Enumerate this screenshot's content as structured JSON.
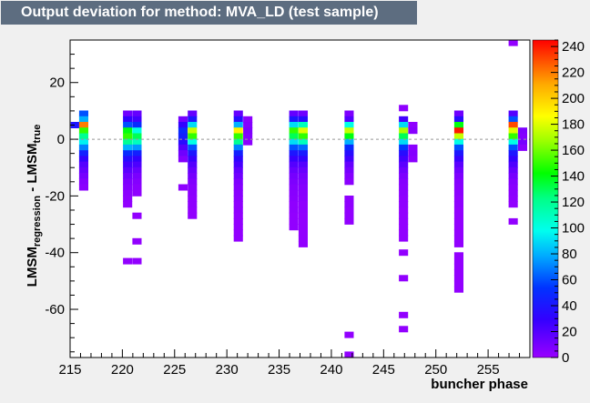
{
  "header": {
    "title": "Output deviation for method: MVA_LD (test sample)"
  },
  "chart_data": {
    "type": "heatmap",
    "title": "Output deviation for method: MVA_LD (test sample)",
    "xlabel": "buncher phase",
    "ylabel_main": "LMSM",
    "ylabel_sub1": "regression",
    "ylabel_mid": " - LMSM",
    "ylabel_sub2": "true",
    "xlim": [
      215,
      259
    ],
    "ylim": [
      -77,
      35
    ],
    "x_ticks": [
      215,
      220,
      225,
      230,
      235,
      240,
      245,
      250,
      255
    ],
    "y_ticks": [
      -60,
      -40,
      -20,
      0,
      20
    ],
    "z_ticks": [
      0,
      20,
      40,
      60,
      80,
      100,
      120,
      140,
      160,
      180,
      200,
      220,
      240
    ],
    "zlim": [
      0,
      245
    ],
    "bin_width_x": 0.88,
    "bin_height_y": 2.24,
    "reference_line_y": 0,
    "cells": [
      {
        "x": 215.5,
        "y": 5,
        "z": 40
      },
      {
        "x": 216.3,
        "y": 9,
        "z": 60
      },
      {
        "x": 216.3,
        "y": 7,
        "z": 80
      },
      {
        "x": 216.3,
        "y": 5,
        "z": 220
      },
      {
        "x": 216.3,
        "y": 3,
        "z": 150
      },
      {
        "x": 216.3,
        "y": 1,
        "z": 120
      },
      {
        "x": 216.3,
        "y": -1,
        "z": 95
      },
      {
        "x": 216.3,
        "y": -3,
        "z": 70
      },
      {
        "x": 216.3,
        "y": -5,
        "z": 45
      },
      {
        "x": 216.3,
        "y": -7,
        "z": 30
      },
      {
        "x": 216.3,
        "y": -9,
        "z": 20
      },
      {
        "x": 216.3,
        "y": -11,
        "z": 15
      },
      {
        "x": 216.3,
        "y": -13,
        "z": 10
      },
      {
        "x": 216.3,
        "y": -15,
        "z": 6
      },
      {
        "x": 216.3,
        "y": -17,
        "z": 4
      },
      {
        "x": 220.5,
        "y": 9,
        "z": 12
      },
      {
        "x": 220.5,
        "y": 7,
        "z": 30
      },
      {
        "x": 220.5,
        "y": 5,
        "z": 60
      },
      {
        "x": 220.5,
        "y": 3,
        "z": 140
      },
      {
        "x": 220.5,
        "y": 1,
        "z": 150
      },
      {
        "x": 220.5,
        "y": -1,
        "z": 120
      },
      {
        "x": 220.5,
        "y": -3,
        "z": 80
      },
      {
        "x": 220.5,
        "y": -5,
        "z": 50
      },
      {
        "x": 220.5,
        "y": -7,
        "z": 35
      },
      {
        "x": 220.5,
        "y": -9,
        "z": 25
      },
      {
        "x": 220.5,
        "y": -11,
        "z": 18
      },
      {
        "x": 220.5,
        "y": -13,
        "z": 12
      },
      {
        "x": 220.5,
        "y": -15,
        "z": 8
      },
      {
        "x": 220.5,
        "y": -17,
        "z": 6
      },
      {
        "x": 220.5,
        "y": -19,
        "z": 4
      },
      {
        "x": 220.5,
        "y": -21,
        "z": 3
      },
      {
        "x": 220.5,
        "y": -23,
        "z": 2
      },
      {
        "x": 220.5,
        "y": -43,
        "z": 2
      },
      {
        "x": 221.4,
        "y": 9,
        "z": 15
      },
      {
        "x": 221.4,
        "y": 7,
        "z": 25
      },
      {
        "x": 221.4,
        "y": 5,
        "z": 50
      },
      {
        "x": 221.4,
        "y": 3,
        "z": 100
      },
      {
        "x": 221.4,
        "y": 1,
        "z": 130
      },
      {
        "x": 221.4,
        "y": -1,
        "z": 110
      },
      {
        "x": 221.4,
        "y": -3,
        "z": 75
      },
      {
        "x": 221.4,
        "y": -5,
        "z": 45
      },
      {
        "x": 221.4,
        "y": -7,
        "z": 30
      },
      {
        "x": 221.4,
        "y": -9,
        "z": 22
      },
      {
        "x": 221.4,
        "y": -11,
        "z": 14
      },
      {
        "x": 221.4,
        "y": -13,
        "z": 9
      },
      {
        "x": 221.4,
        "y": -15,
        "z": 6
      },
      {
        "x": 221.4,
        "y": -17,
        "z": 4
      },
      {
        "x": 221.4,
        "y": -19,
        "z": 3
      },
      {
        "x": 221.4,
        "y": -27,
        "z": 2
      },
      {
        "x": 221.4,
        "y": -36,
        "z": 2
      },
      {
        "x": 221.4,
        "y": -43,
        "z": 2
      },
      {
        "x": 225.8,
        "y": 7,
        "z": 10
      },
      {
        "x": 225.8,
        "y": 5,
        "z": 30
      },
      {
        "x": 225.8,
        "y": 3,
        "z": 50
      },
      {
        "x": 225.8,
        "y": 1,
        "z": 45
      },
      {
        "x": 225.8,
        "y": -1,
        "z": 35
      },
      {
        "x": 225.8,
        "y": -3,
        "z": 20
      },
      {
        "x": 225.8,
        "y": -5,
        "z": 12
      },
      {
        "x": 225.8,
        "y": -7,
        "z": 6
      },
      {
        "x": 225.8,
        "y": -17,
        "z": 3
      },
      {
        "x": 226.7,
        "y": 9,
        "z": 15
      },
      {
        "x": 226.7,
        "y": 7,
        "z": 40
      },
      {
        "x": 226.7,
        "y": 5,
        "z": 90
      },
      {
        "x": 226.7,
        "y": 3,
        "z": 175
      },
      {
        "x": 226.7,
        "y": 1,
        "z": 150
      },
      {
        "x": 226.7,
        "y": -1,
        "z": 100
      },
      {
        "x": 226.7,
        "y": -3,
        "z": 60
      },
      {
        "x": 226.7,
        "y": -5,
        "z": 40
      },
      {
        "x": 226.7,
        "y": -7,
        "z": 28
      },
      {
        "x": 226.7,
        "y": -9,
        "z": 20
      },
      {
        "x": 226.7,
        "y": -11,
        "z": 14
      },
      {
        "x": 226.7,
        "y": -13,
        "z": 10
      },
      {
        "x": 226.7,
        "y": -15,
        "z": 7
      },
      {
        "x": 226.7,
        "y": -17,
        "z": 5
      },
      {
        "x": 226.7,
        "y": -19,
        "z": 4
      },
      {
        "x": 226.7,
        "y": -21,
        "z": 3
      },
      {
        "x": 226.7,
        "y": -23,
        "z": 3
      },
      {
        "x": 226.7,
        "y": -25,
        "z": 2
      },
      {
        "x": 226.7,
        "y": -27,
        "z": 2
      },
      {
        "x": 231.1,
        "y": 9,
        "z": 15
      },
      {
        "x": 231.1,
        "y": 7,
        "z": 35
      },
      {
        "x": 231.1,
        "y": 5,
        "z": 80
      },
      {
        "x": 231.1,
        "y": 3,
        "z": 190
      },
      {
        "x": 231.1,
        "y": 1,
        "z": 150
      },
      {
        "x": 231.1,
        "y": -1,
        "z": 120
      },
      {
        "x": 231.1,
        "y": -3,
        "z": 70
      },
      {
        "x": 231.1,
        "y": -5,
        "z": 45
      },
      {
        "x": 231.1,
        "y": -7,
        "z": 32
      },
      {
        "x": 231.1,
        "y": -9,
        "z": 24
      },
      {
        "x": 231.1,
        "y": -11,
        "z": 16
      },
      {
        "x": 231.1,
        "y": -13,
        "z": 12
      },
      {
        "x": 231.1,
        "y": -15,
        "z": 8
      },
      {
        "x": 231.1,
        "y": -17,
        "z": 6
      },
      {
        "x": 231.1,
        "y": -19,
        "z": 5
      },
      {
        "x": 231.1,
        "y": -21,
        "z": 4
      },
      {
        "x": 231.1,
        "y": -23,
        "z": 3
      },
      {
        "x": 231.1,
        "y": -25,
        "z": 3
      },
      {
        "x": 231.1,
        "y": -27,
        "z": 2
      },
      {
        "x": 231.1,
        "y": -29,
        "z": 2
      },
      {
        "x": 231.1,
        "y": -31,
        "z": 2
      },
      {
        "x": 231.1,
        "y": -33,
        "z": 2
      },
      {
        "x": 231.1,
        "y": -35,
        "z": 2
      },
      {
        "x": 232.0,
        "y": 7,
        "z": 4
      },
      {
        "x": 232.0,
        "y": 5,
        "z": 6
      },
      {
        "x": 232.0,
        "y": 3,
        "z": 8
      },
      {
        "x": 232.0,
        "y": 1,
        "z": 6
      },
      {
        "x": 232.0,
        "y": -1,
        "z": 4
      },
      {
        "x": 236.4,
        "y": 9,
        "z": 15
      },
      {
        "x": 236.4,
        "y": 7,
        "z": 40
      },
      {
        "x": 236.4,
        "y": 5,
        "z": 90
      },
      {
        "x": 236.4,
        "y": 3,
        "z": 150
      },
      {
        "x": 236.4,
        "y": 1,
        "z": 130
      },
      {
        "x": 236.4,
        "y": -1,
        "z": 90
      },
      {
        "x": 236.4,
        "y": -3,
        "z": 60
      },
      {
        "x": 236.4,
        "y": -5,
        "z": 40
      },
      {
        "x": 236.4,
        "y": -7,
        "z": 28
      },
      {
        "x": 236.4,
        "y": -9,
        "z": 20
      },
      {
        "x": 236.4,
        "y": -11,
        "z": 14
      },
      {
        "x": 236.4,
        "y": -13,
        "z": 10
      },
      {
        "x": 236.4,
        "y": -15,
        "z": 8
      },
      {
        "x": 236.4,
        "y": -17,
        "z": 6
      },
      {
        "x": 236.4,
        "y": -19,
        "z": 5
      },
      {
        "x": 236.4,
        "y": -21,
        "z": 4
      },
      {
        "x": 236.4,
        "y": -23,
        "z": 3
      },
      {
        "x": 236.4,
        "y": -25,
        "z": 3
      },
      {
        "x": 236.4,
        "y": -27,
        "z": 2
      },
      {
        "x": 236.4,
        "y": -29,
        "z": 2
      },
      {
        "x": 236.4,
        "y": -31,
        "z": 2
      },
      {
        "x": 237.3,
        "y": 9,
        "z": 12
      },
      {
        "x": 237.3,
        "y": 7,
        "z": 35
      },
      {
        "x": 237.3,
        "y": 5,
        "z": 110
      },
      {
        "x": 237.3,
        "y": 3,
        "z": 180
      },
      {
        "x": 237.3,
        "y": 1,
        "z": 150
      },
      {
        "x": 237.3,
        "y": -1,
        "z": 110
      },
      {
        "x": 237.3,
        "y": -3,
        "z": 65
      },
      {
        "x": 237.3,
        "y": -5,
        "z": 42
      },
      {
        "x": 237.3,
        "y": -7,
        "z": 30
      },
      {
        "x": 237.3,
        "y": -9,
        "z": 20
      },
      {
        "x": 237.3,
        "y": -11,
        "z": 14
      },
      {
        "x": 237.3,
        "y": -13,
        "z": 10
      },
      {
        "x": 237.3,
        "y": -15,
        "z": 8
      },
      {
        "x": 237.3,
        "y": -17,
        "z": 6
      },
      {
        "x": 237.3,
        "y": -19,
        "z": 5
      },
      {
        "x": 237.3,
        "y": -21,
        "z": 4
      },
      {
        "x": 237.3,
        "y": -23,
        "z": 3
      },
      {
        "x": 237.3,
        "y": -25,
        "z": 3
      },
      {
        "x": 237.3,
        "y": -27,
        "z": 2
      },
      {
        "x": 237.3,
        "y": -29,
        "z": 2
      },
      {
        "x": 237.3,
        "y": -31,
        "z": 2
      },
      {
        "x": 237.3,
        "y": -33,
        "z": 2
      },
      {
        "x": 237.3,
        "y": -35,
        "z": 2
      },
      {
        "x": 237.3,
        "y": -37,
        "z": 2
      },
      {
        "x": 241.7,
        "y": 9,
        "z": 8
      },
      {
        "x": 241.7,
        "y": 7,
        "z": 20
      },
      {
        "x": 241.7,
        "y": 5,
        "z": 100
      },
      {
        "x": 241.7,
        "y": 3,
        "z": 175
      },
      {
        "x": 241.7,
        "y": 1,
        "z": 140
      },
      {
        "x": 241.7,
        "y": -1,
        "z": 80
      },
      {
        "x": 241.7,
        "y": -3,
        "z": 50
      },
      {
        "x": 241.7,
        "y": -5,
        "z": 35
      },
      {
        "x": 241.7,
        "y": -7,
        "z": 25
      },
      {
        "x": 241.7,
        "y": -9,
        "z": 15
      },
      {
        "x": 241.7,
        "y": -11,
        "z": 10
      },
      {
        "x": 241.7,
        "y": -13,
        "z": 6
      },
      {
        "x": 241.7,
        "y": -15,
        "z": 4
      },
      {
        "x": 241.7,
        "y": -21,
        "z": 3
      },
      {
        "x": 241.7,
        "y": -23,
        "z": 3
      },
      {
        "x": 241.7,
        "y": -25,
        "z": 2
      },
      {
        "x": 241.7,
        "y": -27,
        "z": 2
      },
      {
        "x": 241.7,
        "y": -29,
        "z": 2
      },
      {
        "x": 241.7,
        "y": -69,
        "z": 2
      },
      {
        "x": 241.7,
        "y": -76,
        "z": 2
      },
      {
        "x": 246.9,
        "y": 11,
        "z": 3
      },
      {
        "x": 246.9,
        "y": 7,
        "z": 25
      },
      {
        "x": 246.9,
        "y": 5,
        "z": 90
      },
      {
        "x": 246.9,
        "y": 3,
        "z": 170
      },
      {
        "x": 246.9,
        "y": 1,
        "z": 130
      },
      {
        "x": 246.9,
        "y": -1,
        "z": 90
      },
      {
        "x": 246.9,
        "y": -3,
        "z": 55
      },
      {
        "x": 246.9,
        "y": -5,
        "z": 35
      },
      {
        "x": 246.9,
        "y": -7,
        "z": 25
      },
      {
        "x": 246.9,
        "y": -9,
        "z": 18
      },
      {
        "x": 246.9,
        "y": -11,
        "z": 12
      },
      {
        "x": 246.9,
        "y": -13,
        "z": 8
      },
      {
        "x": 246.9,
        "y": -15,
        "z": 6
      },
      {
        "x": 246.9,
        "y": -17,
        "z": 5
      },
      {
        "x": 246.9,
        "y": -19,
        "z": 4
      },
      {
        "x": 246.9,
        "y": -21,
        "z": 3
      },
      {
        "x": 246.9,
        "y": -23,
        "z": 3
      },
      {
        "x": 246.9,
        "y": -25,
        "z": 2
      },
      {
        "x": 246.9,
        "y": -27,
        "z": 2
      },
      {
        "x": 246.9,
        "y": -29,
        "z": 2
      },
      {
        "x": 246.9,
        "y": -31,
        "z": 2
      },
      {
        "x": 246.9,
        "y": -33,
        "z": 2
      },
      {
        "x": 246.9,
        "y": -35,
        "z": 2
      },
      {
        "x": 246.9,
        "y": -40,
        "z": 2
      },
      {
        "x": 246.9,
        "y": -49,
        "z": 2
      },
      {
        "x": 246.9,
        "y": -62,
        "z": 2
      },
      {
        "x": 246.9,
        "y": -67,
        "z": 2
      },
      {
        "x": 247.8,
        "y": 5,
        "z": 3
      },
      {
        "x": 247.8,
        "y": 3,
        "z": 5
      },
      {
        "x": 247.8,
        "y": -3,
        "z": 4
      },
      {
        "x": 247.8,
        "y": -5,
        "z": 6
      },
      {
        "x": 247.8,
        "y": -7,
        "z": 4
      },
      {
        "x": 252.2,
        "y": 9,
        "z": 12
      },
      {
        "x": 252.2,
        "y": 7,
        "z": 35
      },
      {
        "x": 252.2,
        "y": 5,
        "z": 140
      },
      {
        "x": 252.2,
        "y": 3,
        "z": 240
      },
      {
        "x": 252.2,
        "y": 1,
        "z": 175
      },
      {
        "x": 252.2,
        "y": -1,
        "z": 100
      },
      {
        "x": 252.2,
        "y": -3,
        "z": 60
      },
      {
        "x": 252.2,
        "y": -5,
        "z": 40
      },
      {
        "x": 252.2,
        "y": -7,
        "z": 28
      },
      {
        "x": 252.2,
        "y": -9,
        "z": 18
      },
      {
        "x": 252.2,
        "y": -11,
        "z": 12
      },
      {
        "x": 252.2,
        "y": -13,
        "z": 8
      },
      {
        "x": 252.2,
        "y": -15,
        "z": 6
      },
      {
        "x": 252.2,
        "y": -17,
        "z": 5
      },
      {
        "x": 252.2,
        "y": -19,
        "z": 4
      },
      {
        "x": 252.2,
        "y": -21,
        "z": 3
      },
      {
        "x": 252.2,
        "y": -23,
        "z": 3
      },
      {
        "x": 252.2,
        "y": -25,
        "z": 2
      },
      {
        "x": 252.2,
        "y": -27,
        "z": 2
      },
      {
        "x": 252.2,
        "y": -29,
        "z": 2
      },
      {
        "x": 252.2,
        "y": -31,
        "z": 2
      },
      {
        "x": 252.2,
        "y": -33,
        "z": 2
      },
      {
        "x": 252.2,
        "y": -35,
        "z": 2
      },
      {
        "x": 252.2,
        "y": -37,
        "z": 2
      },
      {
        "x": 252.2,
        "y": -41,
        "z": 2
      },
      {
        "x": 252.2,
        "y": -43,
        "z": 2
      },
      {
        "x": 252.2,
        "y": -45,
        "z": 2
      },
      {
        "x": 252.2,
        "y": -47,
        "z": 2
      },
      {
        "x": 252.2,
        "y": -49,
        "z": 2
      },
      {
        "x": 252.2,
        "y": -51,
        "z": 2
      },
      {
        "x": 252.2,
        "y": -53,
        "z": 2
      },
      {
        "x": 257.4,
        "y": 9,
        "z": 20
      },
      {
        "x": 257.4,
        "y": 7,
        "z": 60
      },
      {
        "x": 257.4,
        "y": 5,
        "z": 230
      },
      {
        "x": 257.4,
        "y": 3,
        "z": 180
      },
      {
        "x": 257.4,
        "y": 1,
        "z": 150
      },
      {
        "x": 257.4,
        "y": -1,
        "z": 100
      },
      {
        "x": 257.4,
        "y": -3,
        "z": 60
      },
      {
        "x": 257.4,
        "y": -5,
        "z": 40
      },
      {
        "x": 257.4,
        "y": -7,
        "z": 30
      },
      {
        "x": 257.4,
        "y": -9,
        "z": 22
      },
      {
        "x": 257.4,
        "y": -11,
        "z": 15
      },
      {
        "x": 257.4,
        "y": -13,
        "z": 10
      },
      {
        "x": 257.4,
        "y": -15,
        "z": 7
      },
      {
        "x": 257.4,
        "y": -17,
        "z": 5
      },
      {
        "x": 257.4,
        "y": -19,
        "z": 4
      },
      {
        "x": 257.4,
        "y": -21,
        "z": 3
      },
      {
        "x": 257.4,
        "y": -23,
        "z": 2
      },
      {
        "x": 257.4,
        "y": -29,
        "z": 2
      },
      {
        "x": 257.4,
        "y": 34,
        "z": 2
      },
      {
        "x": 258.3,
        "y": 3,
        "z": 8
      },
      {
        "x": 258.3,
        "y": 1,
        "z": 6
      },
      {
        "x": 258.3,
        "y": -1,
        "z": 10
      },
      {
        "x": 258.3,
        "y": -3,
        "z": 5
      }
    ]
  }
}
